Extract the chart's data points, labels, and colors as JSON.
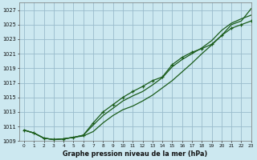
{
  "xlabel": "Graphe pression niveau de la mer (hPa)",
  "ylim": [
    1009,
    1028
  ],
  "xlim": [
    -0.5,
    23
  ],
  "yticks": [
    1009,
    1011,
    1013,
    1015,
    1017,
    1019,
    1021,
    1023,
    1025,
    1027
  ],
  "ytick_labels": [
    "1009",
    "1011",
    "1013",
    "1015",
    "1017",
    "1019",
    "1021",
    "1023",
    "1025",
    "1027"
  ],
  "xticks": [
    0,
    1,
    2,
    3,
    4,
    5,
    6,
    7,
    8,
    9,
    10,
    11,
    12,
    13,
    14,
    15,
    16,
    17,
    18,
    19,
    20,
    21,
    22,
    23
  ],
  "background_color": "#cce8f0",
  "grid_color": "#99bbcc",
  "line_color": "#1a5c1a",
  "curve1_x": [
    0,
    1,
    2,
    3,
    4,
    5,
    6,
    7,
    8,
    9,
    10,
    11,
    12,
    13,
    14,
    15,
    16,
    17,
    18,
    19,
    20,
    21,
    22,
    23
  ],
  "curve1_y": [
    1010.5,
    1010.1,
    1009.4,
    1009.2,
    1009.3,
    1009.5,
    1009.7,
    1010.3,
    1011.5,
    1012.5,
    1013.3,
    1013.8,
    1014.5,
    1015.3,
    1016.3,
    1017.3,
    1018.5,
    1019.7,
    1021.0,
    1022.2,
    1023.5,
    1025.0,
    1025.5,
    1027.2
  ],
  "curve2_x": [
    0,
    1,
    2,
    3,
    4,
    5,
    6,
    7,
    8,
    9,
    10,
    11,
    12,
    13,
    14,
    15,
    16,
    17,
    18,
    19,
    20,
    21,
    22,
    23
  ],
  "curve2_y": [
    1010.5,
    1010.1,
    1009.4,
    1009.2,
    1009.3,
    1009.5,
    1009.8,
    1011.2,
    1012.5,
    1013.5,
    1014.5,
    1015.2,
    1015.8,
    1016.7,
    1017.7,
    1019.2,
    1020.2,
    1021.0,
    1021.8,
    1022.8,
    1024.2,
    1025.2,
    1025.8,
    1026.3
  ],
  "curve3_x": [
    0,
    1,
    2,
    3,
    4,
    5,
    6,
    7,
    8,
    9,
    10,
    11,
    12,
    13,
    14,
    15,
    16,
    17,
    18,
    19,
    20,
    21,
    22,
    23
  ],
  "curve3_y": [
    1010.5,
    1010.1,
    1009.4,
    1009.2,
    1009.3,
    1009.5,
    1009.8,
    1011.5,
    1013.0,
    1014.0,
    1015.0,
    1015.8,
    1016.5,
    1017.3,
    1017.8,
    1019.5,
    1020.5,
    1021.2,
    1021.7,
    1022.3,
    1023.5,
    1024.5,
    1025.0,
    1025.5
  ]
}
